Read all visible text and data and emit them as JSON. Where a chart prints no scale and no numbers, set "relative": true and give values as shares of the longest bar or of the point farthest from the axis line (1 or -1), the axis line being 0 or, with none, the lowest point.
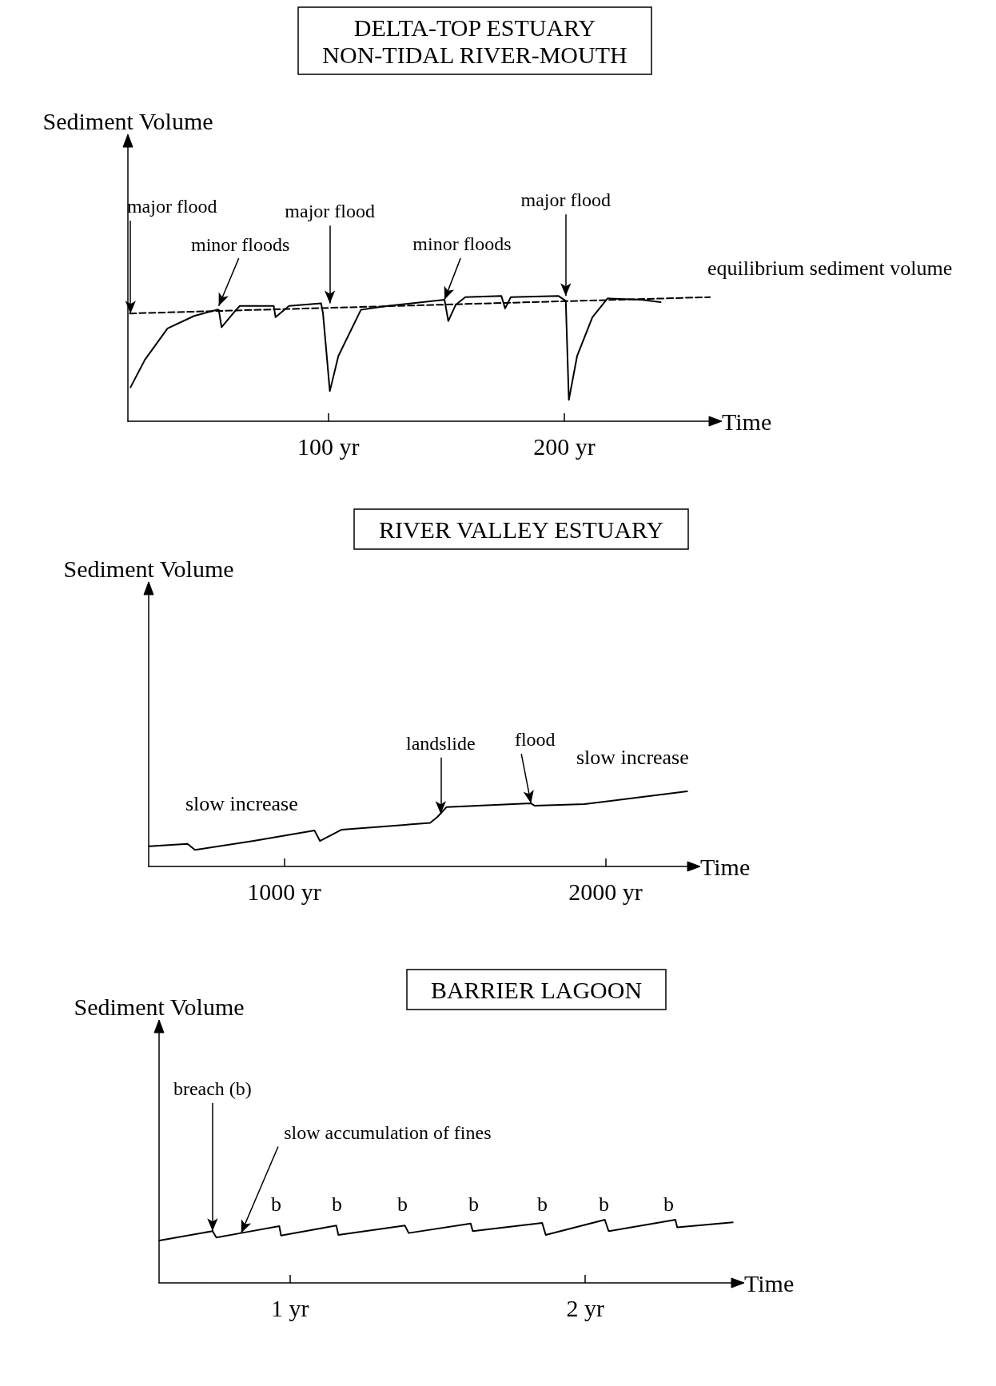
{
  "chart_data": [
    {
      "type": "line",
      "title": "DELTA-TOP ESTUARY\nNON-TIDAL RIVER-MOUTH",
      "xlabel": "Time",
      "ylabel": "Sediment Volume",
      "relative": true,
      "marker": "none",
      "xlim": [
        15,
        262
      ],
      "xticks": [
        {
          "value": 100,
          "label": "100 yr"
        },
        {
          "value": 200,
          "label": "200 yr"
        }
      ],
      "series": [
        {
          "color": "#000000",
          "line_style": "solid",
          "x": [
            16.1,
            22.2,
            31.8,
            43.1,
            52.8,
            53.5,
            54.7,
            60.0,
            62.4,
            76.8,
            77.6,
            83.3,
            96.9,
            97.7,
            100.6,
            104.2,
            113.8,
            125.0,
            149.2,
            150.8,
            154.0,
            158.0,
            173.3,
            174.9,
            177.3,
            197.4,
            200.6,
            201.9,
            205.4,
            211.9,
            218.3,
            232.7,
            240.8
          ],
          "values": [
            0.27,
            0.49,
            0.74,
            0.84,
            0.89,
            0.89,
            0.75,
            0.87,
            0.92,
            0.92,
            0.83,
            0.92,
            0.94,
            0.86,
            0.24,
            0.52,
            0.89,
            0.92,
            0.97,
            0.8,
            0.93,
            0.99,
            1.0,
            0.9,
            0.99,
            1.0,
            0.96,
            0.17,
            0.52,
            0.83,
            0.98,
            0.97,
            0.95
          ]
        },
        {
          "color": "#000000",
          "line_style": "dashed",
          "x": [
            15.8,
            261.7
          ],
          "values": [
            0.86,
            0.99
          ]
        }
      ],
      "annotations": [
        {
          "text": "major flood",
          "x": 16.1,
          "y": 0.86
        },
        {
          "text": "minor floods",
          "x": 53.5,
          "y": 0.92
        },
        {
          "text": "major flood",
          "x": 100.6,
          "y": 0.94
        },
        {
          "text": "minor floods",
          "x": 149.2,
          "y": 0.97
        },
        {
          "text": "major flood",
          "x": 200.6,
          "y": 1.0
        },
        "equilibrium sediment volume"
      ]
    },
    {
      "type": "line",
      "title": "RIVER VALLEY ESTUARY",
      "xlabel": "Time",
      "ylabel": "Sediment Volume",
      "relative": true,
      "marker": "none",
      "xlim": [
        578,
        2260
      ],
      "xticks": [
        {
          "value": 1000,
          "label": "1000 yr"
        },
        {
          "value": 2000,
          "label": "2000 yr"
        }
      ],
      "series": [
        {
          "color": "#000000",
          "x": [
            579.5,
            699,
            722,
            905,
            1094,
            1111,
            1179,
            1454,
            1477,
            1505,
            1768,
            1779,
            1934,
            2254
          ],
          "values": [
            0.27,
            0.3,
            0.22,
            0.34,
            0.48,
            0.34,
            0.49,
            0.58,
            0.66,
            0.79,
            0.84,
            0.81,
            0.83,
            1.0
          ]
        }
      ],
      "annotations": [
        {
          "text": "landslide",
          "x": 1487,
          "y": 0.7
        },
        {
          "text": "flood",
          "x": 1768,
          "y": 0.84
        },
        "slow increase",
        "slow increase"
      ]
    },
    {
      "type": "line",
      "title": "BARRIER LAGOON",
      "xlabel": "Time",
      "ylabel": "Sediment Volume",
      "relative": true,
      "marker": "none",
      "xlim": [
        0.557,
        2.5
      ],
      "xticks": [
        {
          "value": 1,
          "label": "1 yr"
        },
        {
          "value": 2,
          "label": "2 yr"
        }
      ],
      "series": [
        {
          "color": "#000000",
          "x": [
            0.558,
            0.738,
            0.751,
            0.835,
            0.964,
            0.97,
            1.157,
            1.164,
            1.389,
            1.402,
            1.612,
            1.619,
            1.854,
            1.866,
            2.066,
            2.079,
            2.305,
            2.311,
            2.499
          ],
          "values": [
            0.67,
            0.82,
            0.72,
            0.79,
            0.9,
            0.75,
            0.91,
            0.76,
            0.91,
            0.79,
            0.94,
            0.82,
            0.95,
            0.76,
            1.0,
            0.82,
            1.0,
            0.88,
            0.96
          ]
        }
      ],
      "annotations": [
        {
          "text": "breach (b)",
          "x": 0.738,
          "y": 0.82
        },
        {
          "text": "slow accumulation of fines",
          "x": 0.835,
          "y": 0.79
        },
        "b",
        "b",
        "b",
        "b",
        "b",
        "b",
        "b"
      ]
    }
  ]
}
